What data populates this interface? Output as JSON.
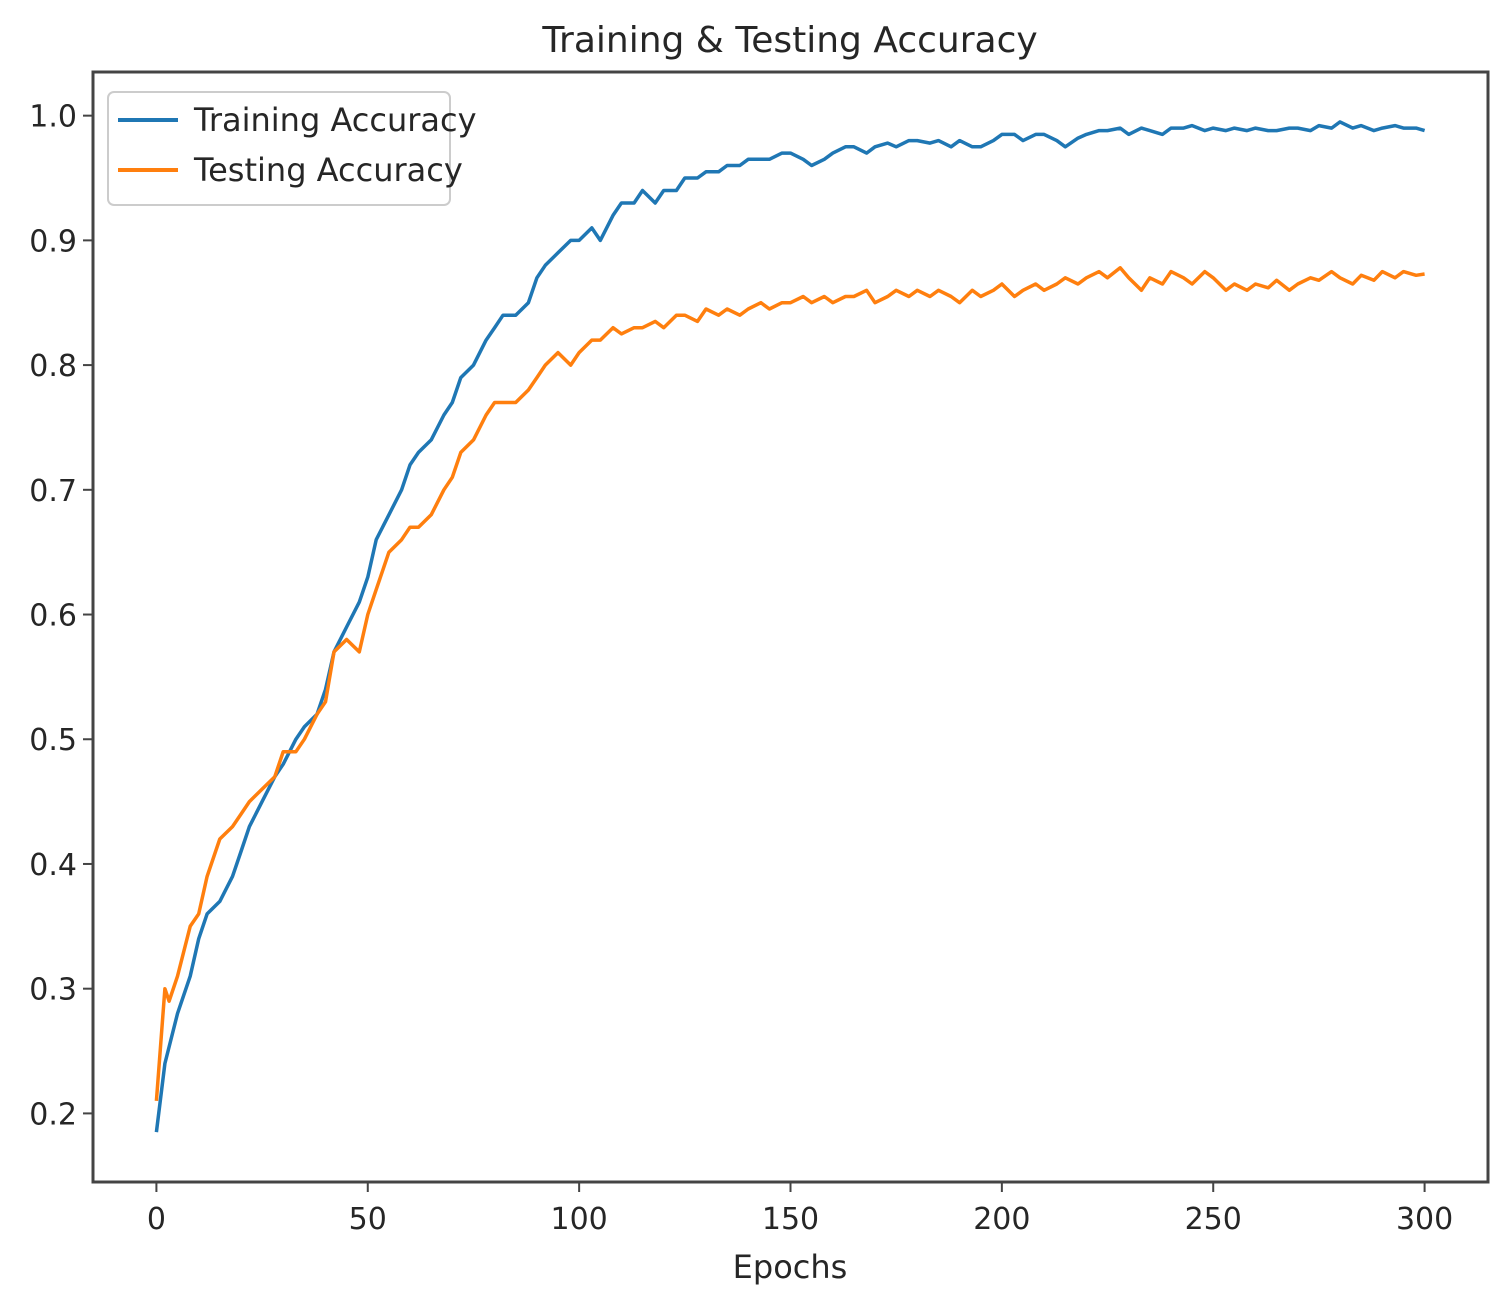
{
  "chart_data": {
    "type": "line",
    "title": "Training & Testing Accuracy",
    "xlabel": "Epochs",
    "ylabel": "",
    "xlim": [
      -15,
      315
    ],
    "ylim": [
      0.145,
      1.035
    ],
    "x_ticks": [
      0,
      50,
      100,
      150,
      200,
      250,
      300
    ],
    "y_ticks": [
      0.2,
      0.3,
      0.4,
      0.5,
      0.6,
      0.7,
      0.8,
      0.9,
      1.0
    ],
    "x_tick_labels": [
      "0",
      "50",
      "100",
      "150",
      "200",
      "250",
      "300"
    ],
    "y_tick_labels": [
      "0.2",
      "0.3",
      "0.4",
      "0.5",
      "0.6",
      "0.7",
      "0.8",
      "0.9",
      "1.0"
    ],
    "grid": false,
    "legend_position": "top-left",
    "series": [
      {
        "name": "Training Accuracy",
        "color": "#1f77b4",
        "x": [
          0,
          2,
          5,
          8,
          10,
          12,
          15,
          18,
          20,
          22,
          25,
          28,
          30,
          33,
          35,
          38,
          40,
          42,
          45,
          48,
          50,
          52,
          55,
          58,
          60,
          62,
          65,
          68,
          70,
          72,
          75,
          78,
          80,
          82,
          85,
          88,
          90,
          92,
          95,
          98,
          100,
          103,
          105,
          108,
          110,
          113,
          115,
          118,
          120,
          123,
          125,
          128,
          130,
          133,
          135,
          138,
          140,
          143,
          145,
          148,
          150,
          153,
          155,
          158,
          160,
          163,
          165,
          168,
          170,
          173,
          175,
          178,
          180,
          183,
          185,
          188,
          190,
          193,
          195,
          198,
          200,
          203,
          205,
          208,
          210,
          213,
          215,
          218,
          220,
          223,
          225,
          228,
          230,
          233,
          235,
          238,
          240,
          243,
          245,
          248,
          250,
          253,
          255,
          258,
          260,
          263,
          265,
          268,
          270,
          273,
          275,
          278,
          280,
          283,
          285,
          288,
          290,
          293,
          295,
          298,
          300
        ],
        "y": [
          0.185,
          0.24,
          0.28,
          0.31,
          0.34,
          0.36,
          0.37,
          0.39,
          0.41,
          0.43,
          0.45,
          0.47,
          0.48,
          0.5,
          0.51,
          0.52,
          0.54,
          0.57,
          0.59,
          0.61,
          0.63,
          0.66,
          0.68,
          0.7,
          0.72,
          0.73,
          0.74,
          0.76,
          0.77,
          0.79,
          0.8,
          0.82,
          0.83,
          0.84,
          0.84,
          0.85,
          0.87,
          0.88,
          0.89,
          0.9,
          0.9,
          0.91,
          0.9,
          0.92,
          0.93,
          0.93,
          0.94,
          0.93,
          0.94,
          0.94,
          0.95,
          0.95,
          0.955,
          0.955,
          0.96,
          0.96,
          0.965,
          0.965,
          0.965,
          0.97,
          0.97,
          0.965,
          0.96,
          0.965,
          0.97,
          0.975,
          0.975,
          0.97,
          0.975,
          0.978,
          0.975,
          0.98,
          0.98,
          0.978,
          0.98,
          0.975,
          0.98,
          0.975,
          0.975,
          0.98,
          0.985,
          0.985,
          0.98,
          0.985,
          0.985,
          0.98,
          0.975,
          0.982,
          0.985,
          0.988,
          0.988,
          0.99,
          0.985,
          0.99,
          0.988,
          0.985,
          0.99,
          0.99,
          0.992,
          0.988,
          0.99,
          0.988,
          0.99,
          0.988,
          0.99,
          0.988,
          0.988,
          0.99,
          0.99,
          0.988,
          0.992,
          0.99,
          0.995,
          0.99,
          0.992,
          0.988,
          0.99,
          0.992,
          0.99,
          0.99,
          0.988
        ]
      },
      {
        "name": "Testing Accuracy",
        "color": "#ff7f0e",
        "x": [
          0,
          2,
          3,
          5,
          8,
          10,
          12,
          15,
          18,
          20,
          22,
          25,
          28,
          30,
          33,
          35,
          38,
          40,
          42,
          45,
          48,
          50,
          52,
          55,
          58,
          60,
          62,
          65,
          68,
          70,
          72,
          75,
          78,
          80,
          82,
          85,
          88,
          90,
          92,
          95,
          98,
          100,
          103,
          105,
          108,
          110,
          113,
          115,
          118,
          120,
          123,
          125,
          128,
          130,
          133,
          135,
          138,
          140,
          143,
          145,
          148,
          150,
          153,
          155,
          158,
          160,
          163,
          165,
          168,
          170,
          173,
          175,
          178,
          180,
          183,
          185,
          188,
          190,
          193,
          195,
          198,
          200,
          203,
          205,
          208,
          210,
          213,
          215,
          218,
          220,
          223,
          225,
          228,
          230,
          233,
          235,
          238,
          240,
          243,
          245,
          248,
          250,
          253,
          255,
          258,
          260,
          263,
          265,
          268,
          270,
          273,
          275,
          278,
          280,
          283,
          285,
          288,
          290,
          293,
          295,
          298,
          300
        ],
        "y": [
          0.21,
          0.3,
          0.29,
          0.31,
          0.35,
          0.36,
          0.39,
          0.42,
          0.43,
          0.44,
          0.45,
          0.46,
          0.47,
          0.49,
          0.49,
          0.5,
          0.52,
          0.53,
          0.57,
          0.58,
          0.57,
          0.6,
          0.62,
          0.65,
          0.66,
          0.67,
          0.67,
          0.68,
          0.7,
          0.71,
          0.73,
          0.74,
          0.76,
          0.77,
          0.77,
          0.77,
          0.78,
          0.79,
          0.8,
          0.81,
          0.8,
          0.81,
          0.82,
          0.82,
          0.83,
          0.825,
          0.83,
          0.83,
          0.835,
          0.83,
          0.84,
          0.84,
          0.835,
          0.845,
          0.84,
          0.845,
          0.84,
          0.845,
          0.85,
          0.845,
          0.85,
          0.85,
          0.855,
          0.85,
          0.855,
          0.85,
          0.855,
          0.855,
          0.86,
          0.85,
          0.855,
          0.86,
          0.855,
          0.86,
          0.855,
          0.86,
          0.855,
          0.85,
          0.86,
          0.855,
          0.86,
          0.865,
          0.855,
          0.86,
          0.865,
          0.86,
          0.865,
          0.87,
          0.865,
          0.87,
          0.875,
          0.87,
          0.878,
          0.87,
          0.86,
          0.87,
          0.865,
          0.875,
          0.87,
          0.865,
          0.875,
          0.87,
          0.86,
          0.865,
          0.86,
          0.865,
          0.862,
          0.868,
          0.86,
          0.865,
          0.87,
          0.868,
          0.875,
          0.87,
          0.865,
          0.872,
          0.868,
          0.875,
          0.87,
          0.875,
          0.872,
          0.873
        ]
      }
    ]
  }
}
